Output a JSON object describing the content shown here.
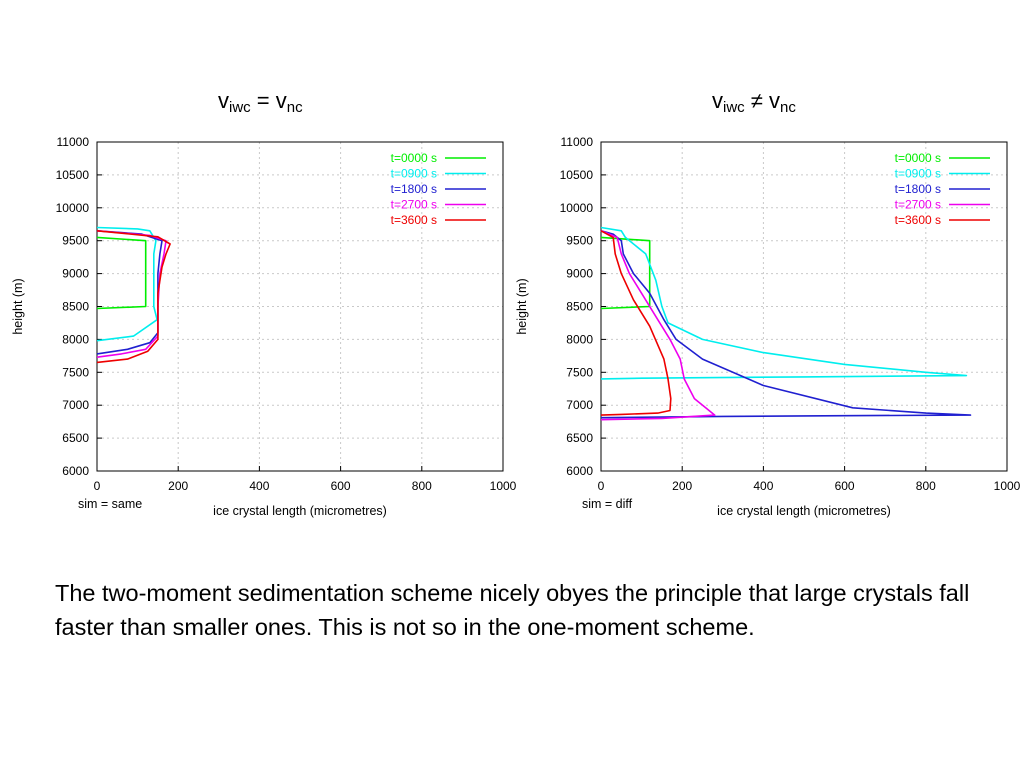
{
  "titles": {
    "left": {
      "v1": "v",
      "sub1": "iwc",
      "rel": "=",
      "v2": "v",
      "sub2": "nc"
    },
    "right": {
      "v1": "v",
      "sub1": "iwc",
      "rel": "≠",
      "v2": "v",
      "sub2": "nc"
    }
  },
  "caption": "The two-moment sedimentation scheme nicely obyes the principle that large crystals fall faster than smaller ones.  This is not so in the one-moment scheme.",
  "chart_data": [
    {
      "type": "line",
      "xlabel": "ice crystal length (micrometres)",
      "ylabel": "height (m)",
      "xlim": [
        0,
        1000
      ],
      "ylim": [
        6000,
        11000
      ],
      "xticks": [
        "0",
        "200",
        "400",
        "600",
        "800",
        "1000"
      ],
      "yticks": [
        "6000",
        "6500",
        "7000",
        "7500",
        "8000",
        "8500",
        "9000",
        "9500",
        "10000",
        "10500",
        "11000"
      ],
      "note": "sim = same",
      "grid": true,
      "legend_position": "top-right",
      "series": [
        {
          "name": "t=0000 s",
          "color": "#00ee00",
          "points": [
            [
              0,
              9550
            ],
            [
              120,
              9500
            ],
            [
              120,
              8500
            ],
            [
              0,
              8470
            ]
          ]
        },
        {
          "name": "t=0900 s",
          "color": "#00eeee",
          "points": [
            [
              0,
              9700
            ],
            [
              100,
              9680
            ],
            [
              130,
              9650
            ],
            [
              145,
              9500
            ],
            [
              140,
              9300
            ],
            [
              140,
              8800
            ],
            [
              140,
              8500
            ],
            [
              148,
              8300
            ],
            [
              90,
              8050
            ],
            [
              0,
              7980
            ]
          ]
        },
        {
          "name": "t=1800 s",
          "color": "#2020d0",
          "points": [
            [
              0,
              9650
            ],
            [
              110,
              9600
            ],
            [
              160,
              9500
            ],
            [
              155,
              9300
            ],
            [
              150,
              9000
            ],
            [
              150,
              8500
            ],
            [
              150,
              8100
            ],
            [
              130,
              7950
            ],
            [
              75,
              7850
            ],
            [
              0,
              7780
            ]
          ]
        },
        {
          "name": "t=2700 s",
          "color": "#ee00ee",
          "points": [
            [
              0,
              9650
            ],
            [
              130,
              9580
            ],
            [
              170,
              9500
            ],
            [
              165,
              9300
            ],
            [
              155,
              9000
            ],
            [
              150,
              8500
            ],
            [
              150,
              8050
            ],
            [
              120,
              7850
            ],
            [
              60,
              7780
            ],
            [
              0,
              7730
            ]
          ]
        },
        {
          "name": "t=3600 s",
          "color": "#ee0000",
          "points": [
            [
              0,
              9650
            ],
            [
              150,
              9560
            ],
            [
              180,
              9450
            ],
            [
              170,
              9300
            ],
            [
              160,
              9100
            ],
            [
              150,
              8700
            ],
            [
              150,
              8000
            ],
            [
              125,
              7820
            ],
            [
              75,
              7700
            ],
            [
              0,
              7650
            ]
          ]
        }
      ]
    },
    {
      "type": "line",
      "xlabel": "ice crystal length (micrometres)",
      "ylabel": "height (m)",
      "xlim": [
        0,
        1000
      ],
      "ylim": [
        6000,
        11000
      ],
      "xticks": [
        "0",
        "200",
        "400",
        "600",
        "800",
        "1000"
      ],
      "yticks": [
        "6000",
        "6500",
        "7000",
        "7500",
        "8000",
        "8500",
        "9000",
        "9500",
        "10000",
        "10500",
        "11000"
      ],
      "note": "sim = diff",
      "grid": true,
      "legend_position": "top-right",
      "series": [
        {
          "name": "t=0000 s",
          "color": "#00ee00",
          "points": [
            [
              0,
              9550
            ],
            [
              120,
              9500
            ],
            [
              120,
              8500
            ],
            [
              0,
              8470
            ]
          ]
        },
        {
          "name": "t=0900 s",
          "color": "#00eeee",
          "points": [
            [
              0,
              9700
            ],
            [
              50,
              9650
            ],
            [
              60,
              9550
            ],
            [
              110,
              9300
            ],
            [
              135,
              8900
            ],
            [
              150,
              8500
            ],
            [
              165,
              8250
            ],
            [
              250,
              8000
            ],
            [
              400,
              7800
            ],
            [
              600,
              7620
            ],
            [
              800,
              7500
            ],
            [
              900,
              7450
            ],
            [
              500,
              7430
            ],
            [
              100,
              7410
            ],
            [
              0,
              7400
            ]
          ]
        },
        {
          "name": "t=1800 s",
          "color": "#2020d0",
          "points": [
            [
              0,
              9650
            ],
            [
              30,
              9600
            ],
            [
              50,
              9500
            ],
            [
              55,
              9300
            ],
            [
              80,
              9000
            ],
            [
              120,
              8700
            ],
            [
              155,
              8300
            ],
            [
              185,
              8000
            ],
            [
              250,
              7700
            ],
            [
              400,
              7300
            ],
            [
              620,
              6960
            ],
            [
              800,
              6880
            ],
            [
              910,
              6850
            ],
            [
              600,
              6840
            ],
            [
              300,
              6830
            ],
            [
              0,
              6810
            ]
          ]
        },
        {
          "name": "t=2700 s",
          "color": "#ee00ee",
          "points": [
            [
              0,
              9650
            ],
            [
              40,
              9550
            ],
            [
              50,
              9300
            ],
            [
              70,
              9000
            ],
            [
              100,
              8700
            ],
            [
              140,
              8300
            ],
            [
              170,
              8000
            ],
            [
              195,
              7700
            ],
            [
              205,
              7400
            ],
            [
              230,
              7100
            ],
            [
              260,
              6950
            ],
            [
              280,
              6850
            ],
            [
              150,
              6800
            ],
            [
              0,
              6780
            ]
          ]
        },
        {
          "name": "t=3600 s",
          "color": "#ee0000",
          "points": [
            [
              0,
              9650
            ],
            [
              30,
              9550
            ],
            [
              35,
              9300
            ],
            [
              50,
              9000
            ],
            [
              80,
              8600
            ],
            [
              120,
              8200
            ],
            [
              155,
              7700
            ],
            [
              165,
              7400
            ],
            [
              172,
              7100
            ],
            [
              170,
              6920
            ],
            [
              140,
              6880
            ],
            [
              50,
              6860
            ],
            [
              0,
              6850
            ]
          ]
        }
      ]
    }
  ]
}
